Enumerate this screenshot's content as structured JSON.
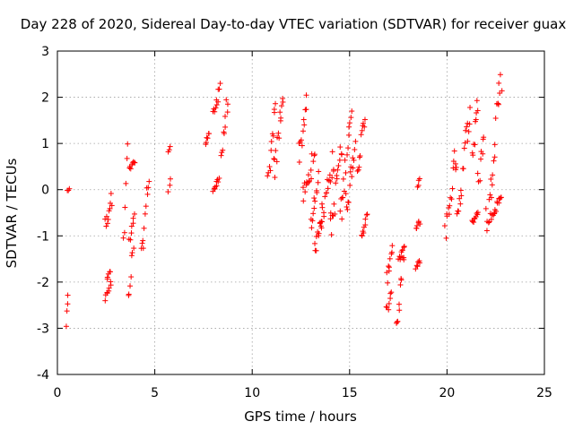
{
  "chart_data": {
    "type": "scatter",
    "title": "Day 228 of 2020, Sidereal Day-to-day VTEC variation (SDTVAR) for receiver guax",
    "xlabel": "GPS time / hours",
    "ylabel": "SDTVAR / TECUs",
    "xlim": [
      0,
      25
    ],
    "ylim": [
      -4,
      3
    ],
    "xticks": [
      "0",
      "5",
      "10",
      "15",
      "20",
      "25"
    ],
    "yticks": [
      "-4",
      "-3",
      "-2",
      "-1",
      "0",
      "1",
      "2",
      "3"
    ],
    "grid": true,
    "marker": "+",
    "marker_color": "#ff0000",
    "segments": [
      {
        "t0": 0.45,
        "t1": 0.55,
        "y0": -2.9,
        "y1": -2.4,
        "spread": 0.15
      },
      {
        "t0": 0.5,
        "t1": 0.6,
        "y0": -0.05,
        "y1": 0.05,
        "spread": 0.05
      },
      {
        "t0": 2.45,
        "t1": 2.75,
        "y0": -2.35,
        "y1": -2.05,
        "spread": 0.1
      },
      {
        "t0": 2.55,
        "t1": 2.7,
        "y0": -1.9,
        "y1": -1.75,
        "spread": 0.05
      },
      {
        "t0": 2.45,
        "t1": 2.8,
        "y0": -0.75,
        "y1": -0.2,
        "spread": 0.15
      },
      {
        "t0": 3.4,
        "t1": 3.6,
        "y0": -0.9,
        "y1": 0.85,
        "spread": 0.2
      },
      {
        "t0": 3.65,
        "t1": 3.9,
        "y0": -2.35,
        "y1": -1.3,
        "spread": 0.15
      },
      {
        "t0": 3.7,
        "t1": 3.95,
        "y0": -1.1,
        "y1": -0.6,
        "spread": 0.1
      },
      {
        "t0": 3.7,
        "t1": 4.0,
        "y0": 0.45,
        "y1": 0.6,
        "spread": 0.05
      },
      {
        "t0": 4.3,
        "t1": 4.7,
        "y0": -1.4,
        "y1": 0.2,
        "spread": 0.2
      },
      {
        "t0": 5.7,
        "t1": 5.8,
        "y0": 0.8,
        "y1": 0.95,
        "spread": 0.05
      },
      {
        "t0": 5.7,
        "t1": 5.8,
        "y0": -0.05,
        "y1": 0.2,
        "spread": 0.05
      },
      {
        "t0": 7.6,
        "t1": 7.8,
        "y0": 1.0,
        "y1": 1.25,
        "spread": 0.05
      },
      {
        "t0": 8.0,
        "t1": 8.3,
        "y0": 0.0,
        "y1": 0.2,
        "spread": 0.05
      },
      {
        "t0": 8.0,
        "t1": 8.35,
        "y0": 1.6,
        "y1": 2.25,
        "spread": 0.2
      },
      {
        "t0": 8.4,
        "t1": 8.75,
        "y0": 0.8,
        "y1": 1.9,
        "spread": 0.2
      },
      {
        "t0": 10.8,
        "t1": 11.2,
        "y0": 0.1,
        "y1": 1.7,
        "spread": 0.25
      },
      {
        "t0": 11.1,
        "t1": 11.6,
        "y0": 0.4,
        "y1": 2.0,
        "spread": 0.3
      },
      {
        "t0": 12.4,
        "t1": 12.8,
        "y0": 0.8,
        "y1": 1.8,
        "spread": 0.25
      },
      {
        "t0": 12.6,
        "t1": 13.2,
        "y0": -0.1,
        "y1": 0.6,
        "spread": 0.25
      },
      {
        "t0": 13.0,
        "t1": 13.4,
        "y0": -0.7,
        "y1": 0.2,
        "spread": 0.2
      },
      {
        "t0": 13.2,
        "t1": 13.6,
        "y0": -1.25,
        "y1": -0.6,
        "spread": 0.15
      },
      {
        "t0": 13.5,
        "t1": 14.2,
        "y0": -0.6,
        "y1": 0.6,
        "spread": 0.3
      },
      {
        "t0": 14.0,
        "t1": 14.6,
        "y0": -0.8,
        "y1": 0.8,
        "spread": 0.3
      },
      {
        "t0": 14.5,
        "t1": 15.1,
        "y0": -0.5,
        "y1": 1.6,
        "spread": 0.3
      },
      {
        "t0": 14.8,
        "t1": 15.3,
        "y0": -0.3,
        "y1": 0.9,
        "spread": 0.25
      },
      {
        "t0": 15.4,
        "t1": 15.8,
        "y0": 0.6,
        "y1": 1.4,
        "spread": 0.2
      },
      {
        "t0": 15.6,
        "t1": 15.9,
        "y0": -0.95,
        "y1": -0.6,
        "spread": 0.1
      },
      {
        "t0": 16.9,
        "t1": 17.15,
        "y0": -2.6,
        "y1": -2.3,
        "spread": 0.1
      },
      {
        "t0": 16.9,
        "t1": 17.2,
        "y0": -1.9,
        "y1": -1.25,
        "spread": 0.15
      },
      {
        "t0": 17.4,
        "t1": 17.8,
        "y0": -2.85,
        "y1": -1.6,
        "spread": 0.25
      },
      {
        "t0": 17.5,
        "t1": 17.8,
        "y0": -1.5,
        "y1": -1.25,
        "spread": 0.05
      },
      {
        "t0": 18.4,
        "t1": 18.6,
        "y0": -1.7,
        "y1": -1.55,
        "spread": 0.05
      },
      {
        "t0": 18.4,
        "t1": 18.6,
        "y0": -0.85,
        "y1": -0.7,
        "spread": 0.05
      },
      {
        "t0": 18.5,
        "t1": 18.6,
        "y0": 0.05,
        "y1": 0.25,
        "spread": 0.05
      },
      {
        "t0": 19.9,
        "t1": 20.5,
        "y0": -0.8,
        "y1": 0.7,
        "spread": 0.3
      },
      {
        "t0": 20.5,
        "t1": 21.2,
        "y0": -0.4,
        "y1": 1.6,
        "spread": 0.3
      },
      {
        "t0": 21.3,
        "t1": 21.6,
        "y0": -0.7,
        "y1": -0.5,
        "spread": 0.05
      },
      {
        "t0": 21.3,
        "t1": 21.6,
        "y0": 0.8,
        "y1": 1.8,
        "spread": 0.2
      },
      {
        "t0": 21.6,
        "t1": 21.9,
        "y0": 0.2,
        "y1": 1.1,
        "spread": 0.2
      },
      {
        "t0": 22.0,
        "t1": 22.8,
        "y0": -0.65,
        "y1": 2.3,
        "spread": 0.35
      },
      {
        "t0": 22.2,
        "t1": 22.8,
        "y0": -0.6,
        "y1": -0.2,
        "spread": 0.1
      }
    ]
  }
}
